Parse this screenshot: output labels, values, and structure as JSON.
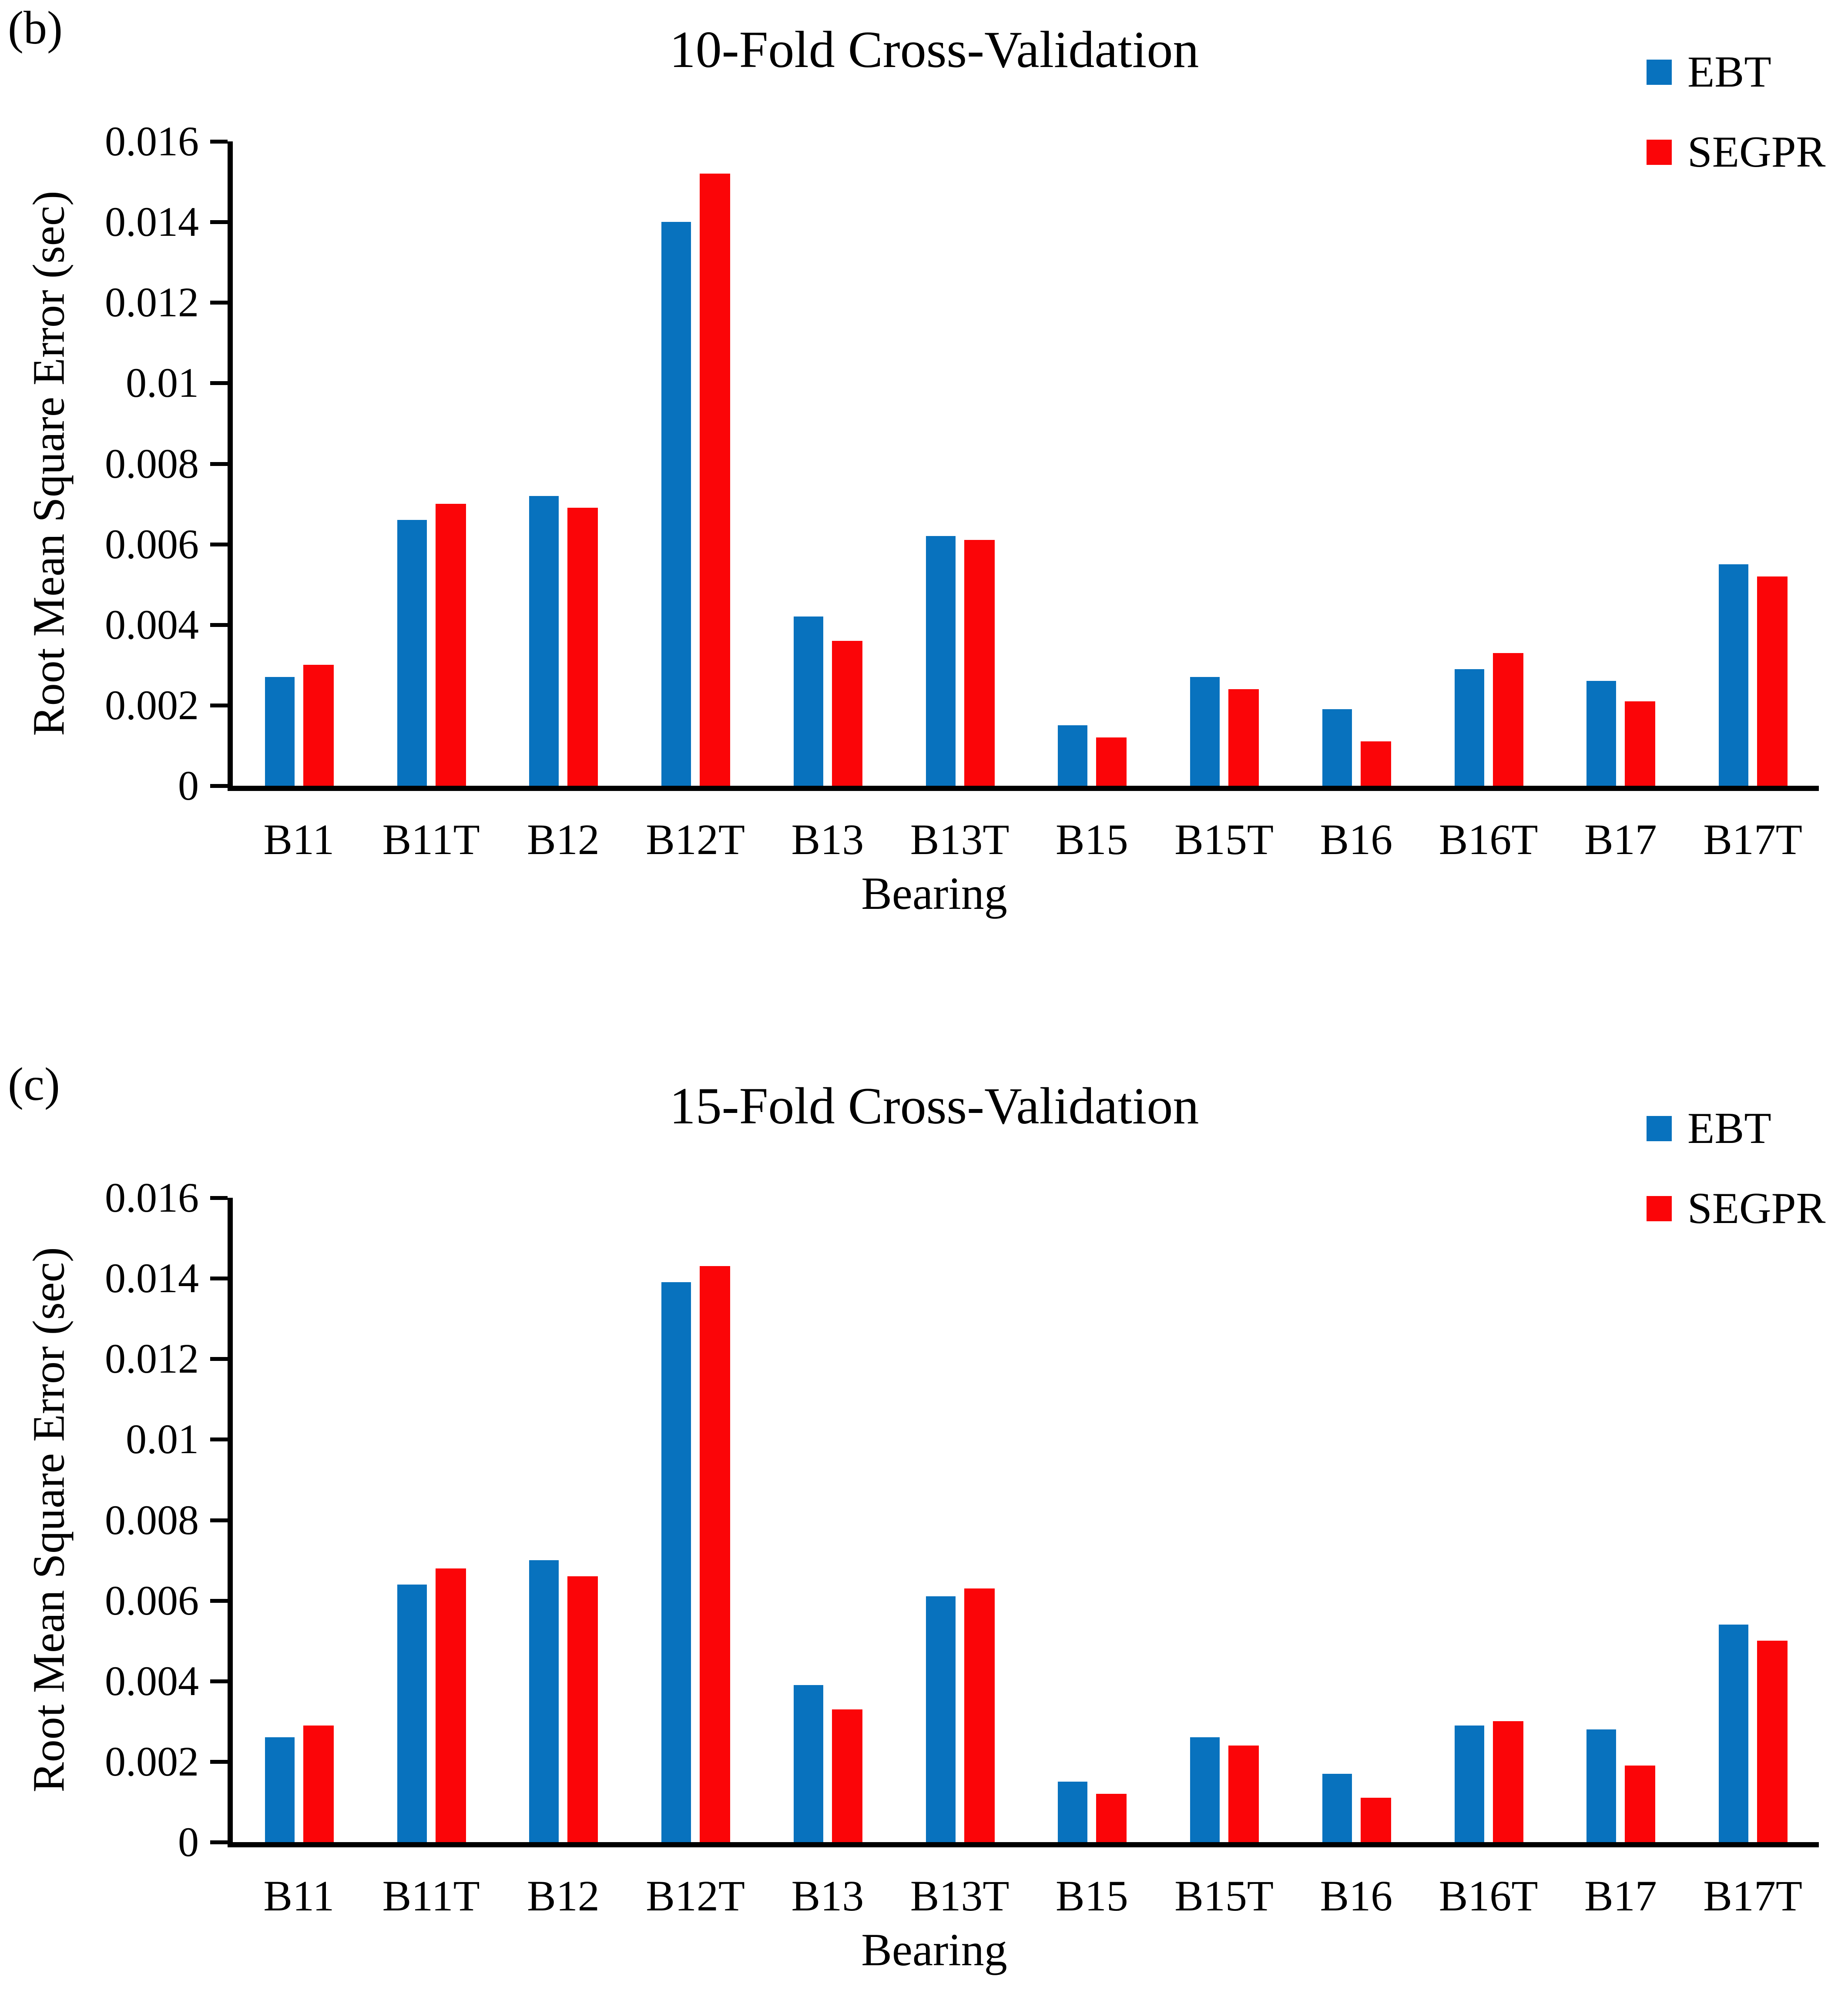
{
  "figure": {
    "background": "#ffffff",
    "text_color": "#000000",
    "axis_color": "#000000"
  },
  "chart_data": [
    {
      "type": "bar",
      "panel_label": "(b)",
      "title": "10-Fold Cross-Validation",
      "xlabel": "Bearing",
      "ylabel": "Root Mean Square Error (sec)",
      "ylim": [
        0,
        0.016
      ],
      "ytick_step": 0.002,
      "ytick_labels": [
        "0",
        "0.002",
        "0.004",
        "0.006",
        "0.008",
        "0.01",
        "0.012",
        "0.014",
        "0.016"
      ],
      "grid": false,
      "legend_position": "top-right",
      "categories": [
        "B11",
        "B11T",
        "B12",
        "B12T",
        "B13",
        "B13T",
        "B15",
        "B15T",
        "B16",
        "B16T",
        "B17",
        "B17T"
      ],
      "series": [
        {
          "name": "EBT",
          "color": "#0872BE",
          "values": [
            0.0027,
            0.0066,
            0.0072,
            0.014,
            0.0042,
            0.0062,
            0.0015,
            0.0027,
            0.0019,
            0.0029,
            0.0026,
            0.0055
          ]
        },
        {
          "name": "SEGPR",
          "color": "#FB0508",
          "values": [
            0.003,
            0.007,
            0.0069,
            0.0152,
            0.0036,
            0.0061,
            0.0012,
            0.0024,
            0.0011,
            0.0033,
            0.0021,
            0.0052
          ]
        }
      ]
    },
    {
      "type": "bar",
      "panel_label": "(c)",
      "title": "15-Fold Cross-Validation",
      "xlabel": "Bearing",
      "ylabel": "Root Mean Square Error (sec)",
      "ylim": [
        0,
        0.016
      ],
      "ytick_step": 0.002,
      "ytick_labels": [
        "0",
        "0.002",
        "0.004",
        "0.006",
        "0.008",
        "0.01",
        "0.012",
        "0.014",
        "0.016"
      ],
      "grid": false,
      "legend_position": "top-right",
      "categories": [
        "B11",
        "B11T",
        "B12",
        "B12T",
        "B13",
        "B13T",
        "B15",
        "B15T",
        "B16",
        "B16T",
        "B17",
        "B17T"
      ],
      "series": [
        {
          "name": "EBT",
          "color": "#0872BE",
          "values": [
            0.0026,
            0.0064,
            0.007,
            0.0139,
            0.0039,
            0.0061,
            0.0015,
            0.0026,
            0.0017,
            0.0029,
            0.0028,
            0.0054
          ]
        },
        {
          "name": "SEGPR",
          "color": "#FB0508",
          "values": [
            0.0029,
            0.0068,
            0.0066,
            0.0143,
            0.0033,
            0.0063,
            0.0012,
            0.0024,
            0.0011,
            0.003,
            0.0019,
            0.005
          ]
        }
      ]
    }
  ]
}
